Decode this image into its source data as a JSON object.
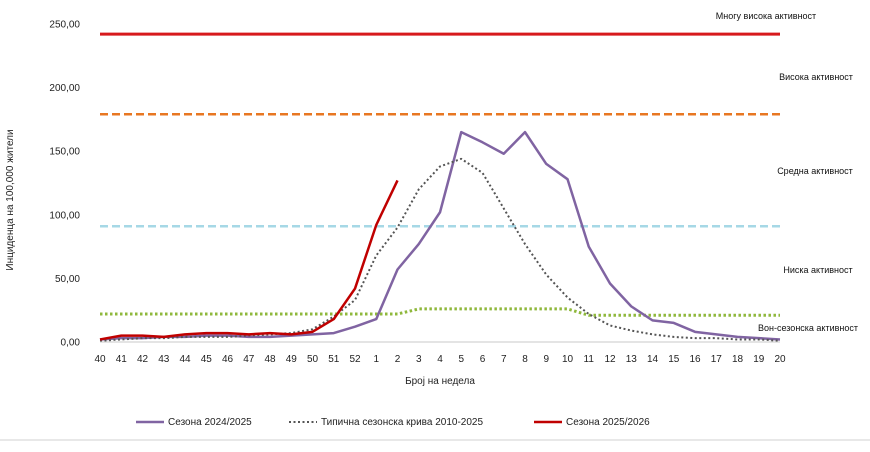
{
  "chart_data": {
    "type": "line",
    "title": "",
    "xlabel": "Број на недела",
    "ylabel": "Инциденца на 100,000 жители",
    "ylim": [
      0,
      250
    ],
    "y_ticks": [
      "0,00",
      "50,00",
      "100,00",
      "150,00",
      "200,00",
      "250,00"
    ],
    "categories": [
      "40",
      "41",
      "42",
      "43",
      "44",
      "45",
      "46",
      "47",
      "48",
      "49",
      "50",
      "51",
      "52",
      "1",
      "2",
      "3",
      "4",
      "5",
      "6",
      "7",
      "8",
      "9",
      "10",
      "11",
      "12",
      "13",
      "14",
      "15",
      "16",
      "17",
      "18",
      "19",
      "20"
    ],
    "thresholds": [
      {
        "label": "Многу висока активност",
        "value": 242,
        "color": "#d7191c",
        "style": "solid"
      },
      {
        "label": "Висока активност",
        "value": 179,
        "color": "#e87722",
        "style": "dashed"
      },
      {
        "label": "Средна активност",
        "value": 91,
        "color": "#a6d8e6",
        "style": "dashed"
      },
      {
        "label": "Ниска активност",
        "value": null,
        "color": "#8fb83c",
        "style": "dotted"
      },
      {
        "label": "Вон-сезонска активност",
        "value": null,
        "color": null,
        "style": null
      }
    ],
    "low_threshold_values": [
      22,
      22,
      22,
      22,
      22,
      22,
      22,
      22,
      22,
      22,
      22,
      22,
      22,
      22,
      22,
      26,
      26,
      26,
      26,
      26,
      26,
      26,
      26,
      21,
      21,
      21,
      21,
      21,
      21,
      21,
      21,
      21,
      21
    ],
    "series": [
      {
        "name": "Сезона 2024/2025",
        "color": "#8064a2",
        "style": "solid",
        "values": [
          2,
          3,
          3,
          4,
          4,
          5,
          5,
          4,
          4,
          5,
          6,
          7,
          12,
          18,
          57,
          77,
          102,
          165,
          157,
          148,
          165,
          140,
          128,
          75,
          46,
          28,
          17,
          15,
          8,
          6,
          4,
          3,
          2
        ]
      },
      {
        "name": "Типична сезонска крива 2010-2025",
        "color": "#555555",
        "style": "dotted",
        "values": [
          1,
          2,
          3,
          3,
          4,
          4,
          4,
          5,
          6,
          7,
          10,
          20,
          33,
          68,
          90,
          120,
          138,
          144,
          133,
          105,
          77,
          53,
          35,
          22,
          13,
          9,
          6,
          4,
          3,
          3,
          2,
          2,
          1
        ]
      },
      {
        "name": "Сезона 2025/2026",
        "color": "#c00000",
        "style": "solid",
        "values": [
          2,
          5,
          5,
          4,
          6,
          7,
          7,
          6,
          7,
          6,
          8,
          18,
          42,
          92,
          127,
          null,
          null,
          null,
          null,
          null,
          null,
          null,
          null,
          null,
          null,
          null,
          null,
          null,
          null,
          null,
          null,
          null,
          null
        ]
      }
    ]
  }
}
